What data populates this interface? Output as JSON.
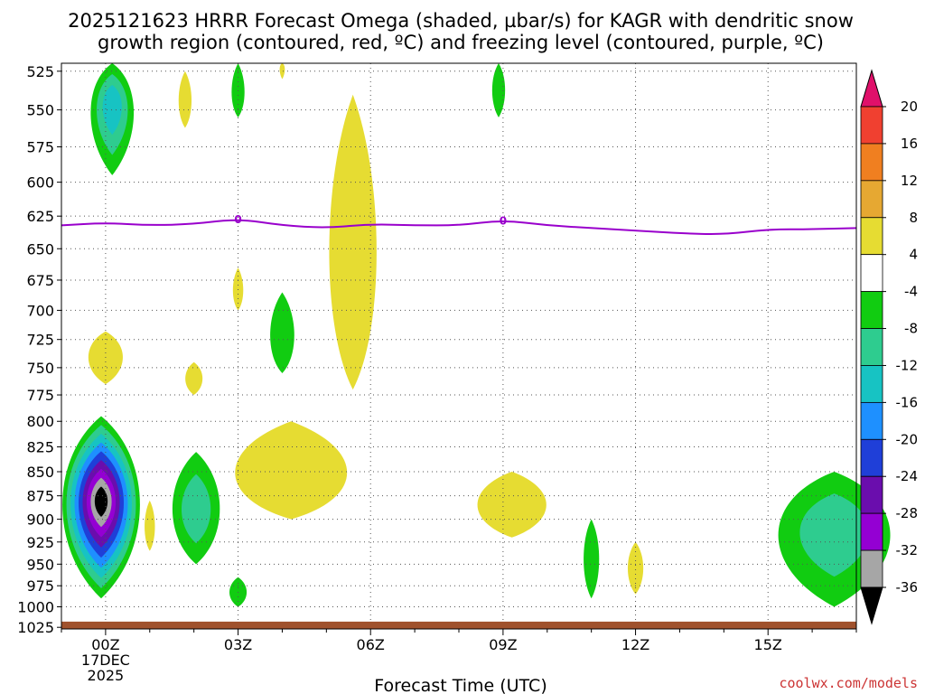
{
  "title": {
    "line1": "2025121623 HRRR Forecast Omega (shaded, µbar/s) for KAGR with dendritic snow",
    "line2": "growth region (contoured, red, ºC) and freezing level (contoured, purple, ºC)"
  },
  "credit": "coolwx.com/models",
  "colors": {
    "freezing_line": "#9900cc",
    "ground": "#a0522d",
    "grid": "#555555"
  },
  "chart_data": {
    "type": "heatmap",
    "title": "2025121623 HRRR Forecast Omega (shaded, µbar/s) for KAGR with dendritic snow growth region (contoured, red, ºC) and freezing level (contoured, purple, ºC)",
    "xlabel": "Forecast Time (UTC)",
    "ylabel": "",
    "x_ticks": [
      {
        "hour": 0,
        "label": "00Z",
        "sub1": "17DEC",
        "sub2": "2025"
      },
      {
        "hour": 3,
        "label": "03Z"
      },
      {
        "hour": 6,
        "label": "06Z"
      },
      {
        "hour": 9,
        "label": "09Z"
      },
      {
        "hour": 12,
        "label": "12Z"
      },
      {
        "hour": 15,
        "label": "15Z"
      }
    ],
    "xlim": [
      -1,
      17
    ],
    "y_ticks": [
      525,
      550,
      575,
      600,
      625,
      650,
      675,
      700,
      725,
      750,
      775,
      800,
      825,
      850,
      875,
      900,
      925,
      950,
      975,
      1000,
      1025
    ],
    "ylim": [
      520,
      1027
    ],
    "y_scale": "log-pressure",
    "grid": true,
    "colorbar": {
      "unit": "µbar/s",
      "bounds": [
        -36,
        -32,
        -28,
        -24,
        -20,
        -16,
        -12,
        -8,
        -4,
        4,
        8,
        12,
        16,
        20
      ],
      "colors": [
        "#000000",
        "#a6a6a6",
        "#9400d3",
        "#6a0dad",
        "#1f3fd8",
        "#1e90ff",
        "#17c3c3",
        "#2ecc8f",
        "#11cc11",
        "#ffffff",
        "#e6dc32",
        "#e6a832",
        "#f07f20",
        "#f04030",
        "#e0106a"
      ],
      "labels": [
        "20",
        "16",
        "12",
        "8",
        "4",
        "-4",
        "-8",
        "-12",
        "-16",
        "-20",
        "-24",
        "-28",
        "-32",
        "-36"
      ]
    },
    "freezing_level": {
      "label": "0",
      "label_hours": [
        3,
        9
      ],
      "points": [
        {
          "hour": -1,
          "p": 632
        },
        {
          "hour": 0,
          "p": 630
        },
        {
          "hour": 1,
          "p": 632
        },
        {
          "hour": 2,
          "p": 631
        },
        {
          "hour": 3,
          "p": 627
        },
        {
          "hour": 4,
          "p": 632
        },
        {
          "hour": 5,
          "p": 634
        },
        {
          "hour": 6,
          "p": 631
        },
        {
          "hour": 7,
          "p": 632
        },
        {
          "hour": 8,
          "p": 632
        },
        {
          "hour": 9,
          "p": 628
        },
        {
          "hour": 10,
          "p": 632
        },
        {
          "hour": 11,
          "p": 634
        },
        {
          "hour": 12,
          "p": 636
        },
        {
          "hour": 13,
          "p": 638
        },
        {
          "hour": 14,
          "p": 639
        },
        {
          "hour": 15,
          "p": 635
        },
        {
          "hour": 16,
          "p": 635
        },
        {
          "hour": 17,
          "p": 634
        }
      ]
    },
    "omega_regions": [
      {
        "name": "upsl-00z-outer",
        "value": -6,
        "rings": [
          -6,
          -10,
          -14
        ],
        "center": [
          0.15,
          545
        ],
        "width_h": 0.5,
        "p_top": 520,
        "p_bot": 595
      },
      {
        "name": "upsl-01z",
        "value": 5,
        "center": [
          1.8,
          545
        ],
        "width_h": 0.15,
        "p_top": 525,
        "p_bot": 562
      },
      {
        "name": "upsl-03z",
        "value": -6,
        "center": [
          3.0,
          540
        ],
        "width_h": 0.15,
        "p_top": 520,
        "p_bot": 555
      },
      {
        "name": "upsl-04z",
        "value": 5,
        "center": [
          4.0,
          522
        ],
        "width_h": 0.06,
        "p_top": 520,
        "p_bot": 530
      },
      {
        "name": "upsl-09z",
        "value": -6,
        "center": [
          8.9,
          537
        ],
        "width_h": 0.15,
        "p_top": 520,
        "p_bot": 555
      },
      {
        "name": "mid-06z-lobe",
        "value": 5,
        "center": [
          5.6,
          665
        ],
        "width_h": 0.55,
        "p_top": 540,
        "p_bot": 770
      },
      {
        "name": "mid-03z",
        "value": 5,
        "center": [
          3.0,
          685
        ],
        "width_h": 0.12,
        "p_top": 665,
        "p_bot": 700
      },
      {
        "name": "mid-04z",
        "value": -6,
        "center": [
          4.0,
          725
        ],
        "width_h": 0.28,
        "p_top": 685,
        "p_bot": 755
      },
      {
        "name": "mid-00z-yellow",
        "value": 5,
        "center": [
          0.0,
          740
        ],
        "width_h": 0.4,
        "p_top": 718,
        "p_bot": 765
      },
      {
        "name": "mid-02z-yellow",
        "value": 5,
        "center": [
          2.0,
          760
        ],
        "width_h": 0.2,
        "p_top": 745,
        "p_bot": 775
      },
      {
        "name": "low-00z-core",
        "value": -38,
        "rings": [
          -6,
          -10,
          -14,
          -18,
          -22,
          -26,
          -30,
          -34,
          -38
        ],
        "center": [
          -0.1,
          880
        ],
        "width_h": 0.9,
        "p_top": 795,
        "p_bot": 990
      },
      {
        "name": "low-02z-blob",
        "value": -10,
        "rings": [
          -6,
          -10
        ],
        "center": [
          2.05,
          890
        ],
        "width_h": 0.55,
        "p_top": 830,
        "p_bot": 950
      },
      {
        "name": "low-01z-yellow",
        "value": 5,
        "center": [
          1.0,
          910
        ],
        "width_h": 0.12,
        "p_top": 880,
        "p_bot": 935
      },
      {
        "name": "low-03z-green",
        "value": -6,
        "center": [
          3.0,
          983
        ],
        "width_h": 0.2,
        "p_top": 965,
        "p_bot": 1000
      },
      {
        "name": "low-04z-yellow",
        "value": 5,
        "center": [
          4.2,
          855
        ],
        "width_h": 1.3,
        "p_top": 800,
        "p_bot": 900
      },
      {
        "name": "low-09z-yellow",
        "value": 5,
        "center": [
          9.2,
          885
        ],
        "width_h": 0.8,
        "p_top": 850,
        "p_bot": 920
      },
      {
        "name": "low-11z-green",
        "value": -6,
        "center": [
          11.0,
          945
        ],
        "width_h": 0.18,
        "p_top": 900,
        "p_bot": 990
      },
      {
        "name": "low-12z-yellow",
        "value": 5,
        "center": [
          12.0,
          955
        ],
        "width_h": 0.18,
        "p_top": 925,
        "p_bot": 985
      },
      {
        "name": "low-16z-green",
        "value": -10,
        "rings": [
          -6,
          -10
        ],
        "center": [
          16.5,
          910
        ],
        "width_h": 1.3,
        "p_top": 850,
        "p_bot": 1000
      }
    ]
  }
}
